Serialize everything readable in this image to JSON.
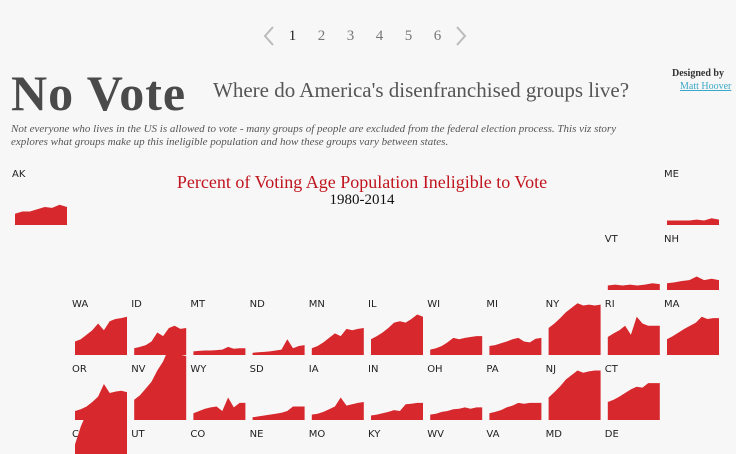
{
  "pager": {
    "pages": [
      "1",
      "2",
      "3",
      "4",
      "5",
      "6"
    ],
    "active": "1",
    "prev_icon": "chevron-left-icon",
    "next_icon": "chevron-right-icon"
  },
  "header": {
    "title": "No Vote",
    "subtitle": "Where do America's disenfranchised groups live?",
    "designed_by": "Designed by",
    "author": "Matt Hoover",
    "intro": "Not everyone who lives in the US is allowed to vote - many groups of people are excluded from the federal election process. This viz story explores what groups make up this ineligible population and how these groups vary between states."
  },
  "chart_data": {
    "type": "area",
    "title": "Percent of Voting Age Population Ineligible to Vote",
    "subtitle": "1980-2014",
    "color": "#d7282d",
    "x_range": [
      1980,
      2014
    ],
    "states": [
      {
        "code": "AK",
        "values": [
          0.25,
          0.3,
          0.3,
          0.35,
          0.4,
          0.38,
          0.45,
          0.4
        ]
      },
      {
        "code": "ME",
        "values": [
          0.1,
          0.1,
          0.1,
          0.1,
          0.12,
          0.1,
          0.15,
          0.12
        ]
      },
      {
        "code": "VT",
        "values": [
          0.1,
          0.12,
          0.1,
          0.12,
          0.1,
          0.12,
          0.15,
          0.13
        ]
      },
      {
        "code": "NH",
        "values": [
          0.15,
          0.17,
          0.2,
          0.22,
          0.3,
          0.22,
          0.25,
          0.22
        ]
      },
      {
        "code": "WA",
        "values": [
          0.3,
          0.35,
          0.45,
          0.55,
          0.7,
          0.55,
          0.75,
          0.8,
          0.82,
          0.85
        ]
      },
      {
        "code": "ID",
        "values": [
          0.15,
          0.18,
          0.22,
          0.3,
          0.5,
          0.42,
          0.6,
          0.65,
          0.58,
          0.6
        ]
      },
      {
        "code": "MT",
        "values": [
          0.08,
          0.09,
          0.1,
          0.1,
          0.11,
          0.12,
          0.18,
          0.14,
          0.15,
          0.15
        ]
      },
      {
        "code": "ND",
        "values": [
          0.05,
          0.06,
          0.07,
          0.08,
          0.1,
          0.12,
          0.35,
          0.15,
          0.2,
          0.22
        ]
      },
      {
        "code": "MN",
        "values": [
          0.15,
          0.2,
          0.28,
          0.38,
          0.48,
          0.42,
          0.58,
          0.55,
          0.58,
          0.6
        ]
      },
      {
        "code": "IL",
        "values": [
          0.35,
          0.42,
          0.5,
          0.6,
          0.72,
          0.75,
          0.72,
          0.8,
          0.9,
          0.85
        ]
      },
      {
        "code": "WI",
        "values": [
          0.12,
          0.15,
          0.2,
          0.28,
          0.38,
          0.35,
          0.38,
          0.4,
          0.42,
          0.42
        ]
      },
      {
        "code": "MI",
        "values": [
          0.2,
          0.22,
          0.26,
          0.3,
          0.35,
          0.38,
          0.3,
          0.28,
          0.36,
          0.38
        ]
      },
      {
        "code": "NY",
        "values": [
          0.6,
          0.7,
          0.82,
          0.95,
          1.05,
          1.15,
          1.1,
          1.12,
          1.1,
          1.12
        ]
      },
      {
        "code": "RI",
        "values": [
          0.4,
          0.48,
          0.55,
          0.65,
          0.45,
          0.85,
          0.7,
          0.65,
          0.65,
          0.65
        ]
      },
      {
        "code": "MA",
        "values": [
          0.35,
          0.42,
          0.5,
          0.58,
          0.65,
          0.72,
          0.85,
          0.8,
          0.82,
          0.82
        ]
      },
      {
        "code": "OR",
        "values": [
          0.2,
          0.24,
          0.3,
          0.4,
          0.52,
          0.8,
          0.6,
          0.63,
          0.65,
          0.62
        ]
      },
      {
        "code": "NV",
        "values": [
          0.45,
          0.55,
          0.7,
          0.85,
          1.1,
          1.3,
          1.6,
          1.5,
          1.45,
          1.42
        ]
      },
      {
        "code": "WY",
        "values": [
          0.15,
          0.2,
          0.25,
          0.28,
          0.3,
          0.2,
          0.5,
          0.28,
          0.38,
          0.38
        ]
      },
      {
        "code": "SD",
        "values": [
          0.06,
          0.08,
          0.1,
          0.12,
          0.14,
          0.16,
          0.2,
          0.3,
          0.3,
          0.3
        ]
      },
      {
        "code": "IA",
        "values": [
          0.12,
          0.14,
          0.18,
          0.24,
          0.3,
          0.5,
          0.32,
          0.35,
          0.38,
          0.4
        ]
      },
      {
        "code": "IN",
        "values": [
          0.1,
          0.12,
          0.15,
          0.18,
          0.22,
          0.2,
          0.35,
          0.36,
          0.38,
          0.38
        ]
      },
      {
        "code": "OH",
        "values": [
          0.12,
          0.14,
          0.18,
          0.2,
          0.24,
          0.25,
          0.28,
          0.25,
          0.28,
          0.28
        ]
      },
      {
        "code": "PA",
        "values": [
          0.15,
          0.18,
          0.22,
          0.28,
          0.32,
          0.38,
          0.36,
          0.38,
          0.38,
          0.38
        ]
      },
      {
        "code": "NJ",
        "values": [
          0.5,
          0.62,
          0.75,
          0.9,
          1.0,
          1.1,
          1.05,
          1.08,
          1.1,
          1.1
        ]
      },
      {
        "code": "CT",
        "values": [
          0.4,
          0.45,
          0.52,
          0.6,
          0.68,
          0.74,
          0.72,
          0.82,
          0.82,
          0.82
        ]
      },
      {
        "code": "CA",
        "values": [
          0.9,
          1.3,
          1.6,
          1.8,
          1.9,
          2.0,
          1.9,
          1.95,
          1.9,
          1.85
        ]
      },
      {
        "code": "UT",
        "values": []
      },
      {
        "code": "CO",
        "values": []
      },
      {
        "code": "NE",
        "values": []
      },
      {
        "code": "MO",
        "values": []
      },
      {
        "code": "KY",
        "values": []
      },
      {
        "code": "WV",
        "values": []
      },
      {
        "code": "VA",
        "values": []
      },
      {
        "code": "MD",
        "values": []
      },
      {
        "code": "DE",
        "values": []
      }
    ]
  }
}
